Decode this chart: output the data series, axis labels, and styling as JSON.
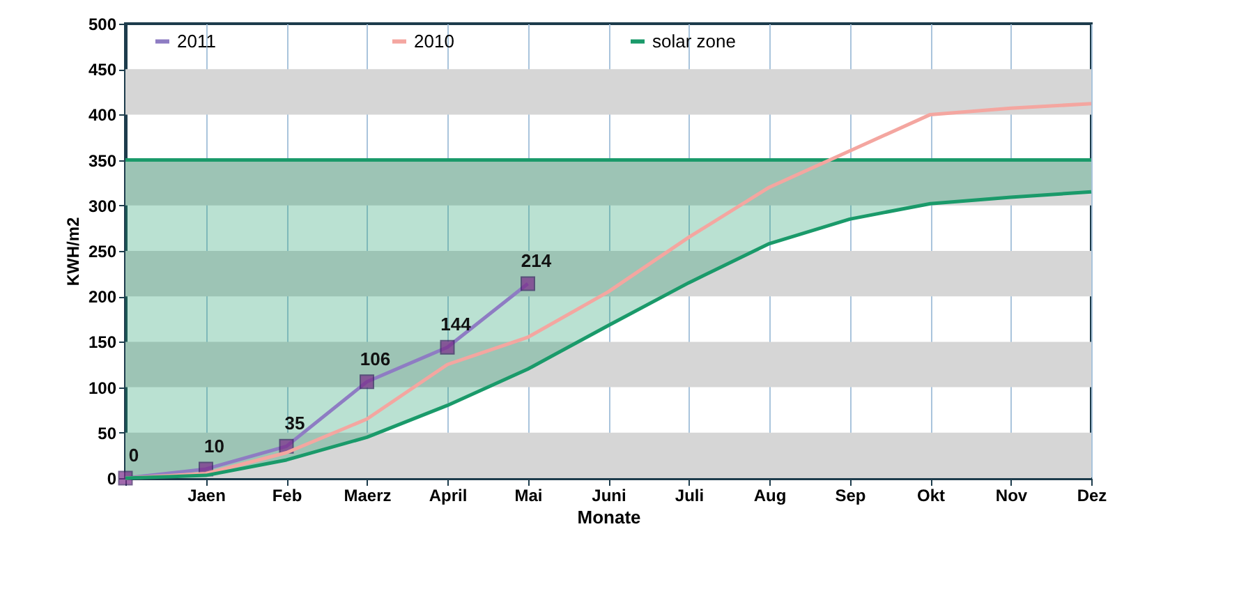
{
  "chart_data": {
    "type": "line",
    "categories": [
      null,
      "Jaen",
      "Feb",
      "Maerz",
      "April",
      "Mai",
      "Juni",
      "Juli",
      "Aug",
      "Sep",
      "Okt",
      "Nov",
      "Dez"
    ],
    "series": [
      {
        "name": "2011",
        "color": "#8e7cc3",
        "marker": "square",
        "values": [
          0,
          10,
          35,
          106,
          144,
          214,
          null,
          null,
          null,
          null,
          null,
          null,
          null
        ],
        "value_labels": [
          "0",
          "10",
          "35",
          "106",
          "144",
          "214",
          null,
          null,
          null,
          null,
          null,
          null,
          null
        ]
      },
      {
        "name": "2010",
        "color": "#f4a6a0",
        "values": [
          0,
          5,
          28,
          65,
          125,
          155,
          205,
          265,
          320,
          360,
          400,
          407,
          412
        ]
      },
      {
        "name": "solar zone",
        "color": "#1a9a6a",
        "values": [
          0,
          3,
          20,
          45,
          80,
          120,
          168,
          215,
          258,
          285,
          302,
          309,
          315
        ],
        "lower": [
          0,
          3,
          20,
          45,
          80,
          120,
          168,
          215,
          258,
          285,
          302,
          309,
          315
        ],
        "upper": [
          350,
          350,
          350,
          350,
          350,
          350,
          350,
          350,
          350,
          350,
          350,
          350,
          350
        ]
      }
    ],
    "xlabel": "Monate",
    "ylabel": "KWH/m2",
    "ylim": [
      0,
      500
    ],
    "yticks": [
      0,
      50,
      100,
      150,
      200,
      250,
      300,
      350,
      400,
      450,
      500
    ],
    "ref_lines": [
      {
        "axis": "y",
        "value": 350,
        "color": "#1a9a6a"
      }
    ],
    "bands": [
      {
        "axis": "y",
        "from": 0,
        "to": 50,
        "color": "#d6d6d6"
      },
      {
        "axis": "y",
        "from": 100,
        "to": 150,
        "color": "#d6d6d6"
      },
      {
        "axis": "y",
        "from": 200,
        "to": 250,
        "color": "#d6d6d6"
      },
      {
        "axis": "y",
        "from": 300,
        "to": 350,
        "color": "#d6d6d6"
      },
      {
        "axis": "y",
        "from": 400,
        "to": 450,
        "color": "#d6d6d6"
      }
    ],
    "grid": "x",
    "legend": "top"
  }
}
